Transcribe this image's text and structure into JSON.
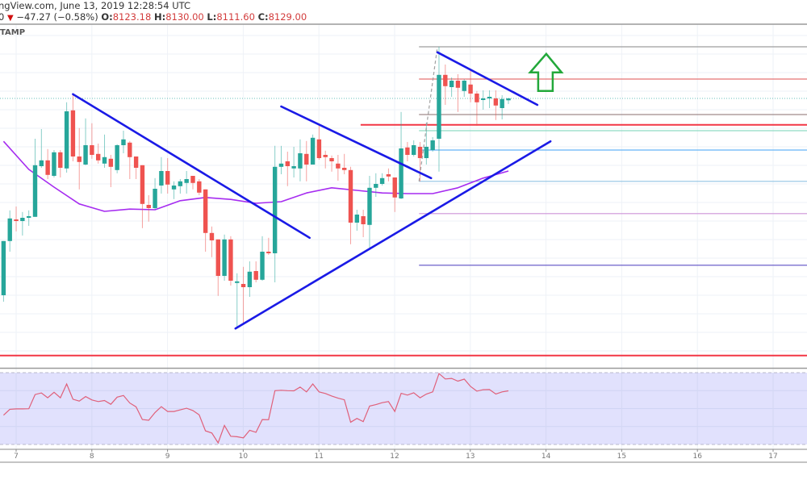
{
  "header": {
    "source_line": "ngView.com, June 13, 2019 12:28:54 UTC",
    "last_digit": "0",
    "change_arrow": "▼",
    "change": "−47.27 (−0.58%)",
    "ohlc": [
      {
        "label": "O:",
        "value": "8123.18"
      },
      {
        "label": "H:",
        "value": "8130.00"
      },
      {
        "label": "L:",
        "value": "8111.60"
      },
      {
        "label": "C:",
        "value": "8129.00"
      }
    ]
  },
  "exchange_label": "TAMP",
  "colors": {
    "up": "#26a69a",
    "down": "#ef5350",
    "moving_average": "#a62cf0",
    "trend_line": "#1a1ae6",
    "arrow": "#22a83a",
    "rsi_line": "#e0607a",
    "rsi_fill": "#e1e1fd",
    "current_price_line": "#26a69a"
  },
  "chart_data": {
    "type": "candlestick",
    "start": "2019-06-06 20:00",
    "interval_hours": 2,
    "current_price": 8129,
    "candles_ohlc": [
      [
        7519,
        7687,
        7499,
        7687
      ],
      [
        7687,
        7782,
        7654,
        7757
      ],
      [
        7754,
        7794,
        7717,
        7749
      ],
      [
        7749,
        7777,
        7704,
        7759
      ],
      [
        7759,
        7782,
        7734,
        7764
      ],
      [
        7762,
        8004,
        7762,
        7922
      ],
      [
        7919,
        8034,
        7914,
        7937
      ],
      [
        7937,
        7972,
        7879,
        7892
      ],
      [
        7889,
        7969,
        7884,
        7962
      ],
      [
        7962,
        7969,
        7884,
        7914
      ],
      [
        7912,
        8117,
        7899,
        8089
      ],
      [
        8092,
        8142,
        7934,
        7949
      ],
      [
        7949,
        8037,
        7847,
        7932
      ],
      [
        7924,
        8067,
        7922,
        7984
      ],
      [
        7984,
        8052,
        7942,
        7954
      ],
      [
        7957,
        7989,
        7927,
        7937
      ],
      [
        7927,
        8017,
        7914,
        7947
      ],
      [
        7942,
        7954,
        7854,
        7917
      ],
      [
        7907,
        7987,
        7897,
        7984
      ],
      [
        7984,
        8029,
        7959,
        8002
      ],
      [
        7992,
        7997,
        7879,
        7947
      ],
      [
        7949,
        7949,
        7879,
        7914
      ],
      [
        7922,
        7922,
        7727,
        7802
      ],
      [
        7799,
        7829,
        7747,
        7789
      ],
      [
        7789,
        7882,
        7784,
        7849
      ],
      [
        7859,
        7947,
        7834,
        7904
      ],
      [
        7904,
        7944,
        7834,
        7862
      ],
      [
        7847,
        7872,
        7817,
        7859
      ],
      [
        7857,
        7879,
        7834,
        7872
      ],
      [
        7867,
        7904,
        7834,
        7879
      ],
      [
        7889,
        7889,
        7847,
        7867
      ],
      [
        7872,
        7879,
        7829,
        7837
      ],
      [
        7847,
        7847,
        7654,
        7712
      ],
      [
        7712,
        7732,
        7637,
        7689
      ],
      [
        7692,
        7692,
        7517,
        7579
      ],
      [
        7579,
        7707,
        7564,
        7692
      ],
      [
        7692,
        7702,
        7549,
        7564
      ],
      [
        7557,
        7587,
        7417,
        7562
      ],
      [
        7554,
        7607,
        7434,
        7544
      ],
      [
        7544,
        7624,
        7514,
        7592
      ],
      [
        7594,
        7624,
        7559,
        7567
      ],
      [
        7567,
        7702,
        7564,
        7654
      ],
      [
        7654,
        7697,
        7644,
        7649
      ],
      [
        7649,
        7982,
        7559,
        7917
      ],
      [
        7917,
        7982,
        7894,
        7927
      ],
      [
        7934,
        7964,
        7857,
        7919
      ],
      [
        7912,
        7979,
        7884,
        7919
      ],
      [
        7912,
        8002,
        7872,
        7959
      ],
      [
        7957,
        7997,
        7872,
        7924
      ],
      [
        7924,
        8017,
        7924,
        8007
      ],
      [
        8002,
        8047,
        7939,
        7944
      ],
      [
        7954,
        7967,
        7912,
        7947
      ],
      [
        7944,
        7952,
        7902,
        7934
      ],
      [
        7927,
        7954,
        7874,
        7912
      ],
      [
        7914,
        7957,
        7894,
        7907
      ],
      [
        7907,
        7917,
        7677,
        7744
      ],
      [
        7744,
        7784,
        7719,
        7769
      ],
      [
        7764,
        7784,
        7699,
        7739
      ],
      [
        7737,
        7889,
        7659,
        7852
      ],
      [
        7852,
        7897,
        7824,
        7864
      ],
      [
        7864,
        7897,
        7859,
        7882
      ],
      [
        7894,
        7912,
        7872,
        7887
      ],
      [
        7884,
        7884,
        7777,
        7822
      ],
      [
        7819,
        8087,
        7817,
        7974
      ],
      [
        7977,
        7994,
        7934,
        7954
      ],
      [
        7954,
        7999,
        7949,
        7984
      ],
      [
        7979,
        7994,
        7872,
        7944
      ],
      [
        7944,
        8054,
        7924,
        7979
      ],
      [
        7969,
        8009,
        7964,
        7999
      ],
      [
        8004,
        8289,
        7902,
        8202
      ],
      [
        8202,
        8234,
        8109,
        8167
      ],
      [
        8164,
        8194,
        8134,
        8184
      ],
      [
        8184,
        8204,
        8087,
        8162
      ],
      [
        8152,
        8189,
        8134,
        8184
      ],
      [
        8172,
        8214,
        8117,
        8144
      ],
      [
        8144,
        8152,
        8044,
        8117
      ],
      [
        8124,
        8154,
        8094,
        8129
      ],
      [
        8129,
        8154,
        8099,
        8134
      ],
      [
        8129,
        8154,
        8062,
        8107
      ],
      [
        8099,
        8139,
        8064,
        8127
      ],
      [
        8123.18,
        8130,
        8111.6,
        8129
      ]
    ],
    "moving_average": [
      {
        "time": "2019-06-06 20:00",
        "value": 7996
      },
      {
        "time": "2019-06-07 04:00",
        "value": 7909
      },
      {
        "time": "2019-06-07 12:00",
        "value": 7854
      },
      {
        "time": "2019-06-07 20:00",
        "value": 7802
      },
      {
        "time": "2019-06-08 04:00",
        "value": 7779
      },
      {
        "time": "2019-06-08 12:00",
        "value": 7786
      },
      {
        "time": "2019-06-08 20:00",
        "value": 7784
      },
      {
        "time": "2019-06-09 04:00",
        "value": 7812
      },
      {
        "time": "2019-06-09 12:00",
        "value": 7822
      },
      {
        "time": "2019-06-09 20:00",
        "value": 7816
      },
      {
        "time": "2019-06-10 04:00",
        "value": 7804
      },
      {
        "time": "2019-06-10 12:00",
        "value": 7809
      },
      {
        "time": "2019-06-10 20:00",
        "value": 7836
      },
      {
        "time": "2019-06-11 04:00",
        "value": 7852
      },
      {
        "time": "2019-06-11 12:00",
        "value": 7844
      },
      {
        "time": "2019-06-11 20:00",
        "value": 7836
      },
      {
        "time": "2019-06-12 04:00",
        "value": 7834
      },
      {
        "time": "2019-06-12 12:00",
        "value": 7834
      },
      {
        "time": "2019-06-12 20:00",
        "value": 7852
      },
      {
        "time": "2019-06-13 04:00",
        "value": 7882
      },
      {
        "time": "2019-06-13 12:00",
        "value": 7904
      }
    ],
    "trend_lines": [
      {
        "from": {
          "time": "2019-06-07 18:00",
          "price": 8142
        },
        "to": {
          "time": "2019-06-10 21:00",
          "price": 7697
        }
      },
      {
        "from": {
          "time": "2019-06-10 12:00",
          "price": 8104
        },
        "to": {
          "time": "2019-06-12 11:30",
          "price": 7882
        }
      },
      {
        "from": {
          "time": "2019-06-09 21:30",
          "price": 7416
        },
        "to": {
          "time": "2019-06-14 01:20",
          "price": 7996
        }
      },
      {
        "from": {
          "time": "2019-06-12 13:30",
          "price": 8272
        },
        "to": {
          "time": "2019-06-13 21:10",
          "price": 8109
        }
      }
    ],
    "dashed_line": {
      "from": {
        "time": "2019-06-12 07:40",
        "price": 7872
      },
      "to": {
        "time": "2019-06-12 13:30",
        "price": 8289
      }
    },
    "horizontal_levels": [
      {
        "price": 8289,
        "color": "#9e9e9e",
        "from": "2019-06-12 07:40",
        "thick": false
      },
      {
        "price": 8189,
        "color": "#e57373",
        "from": "2019-06-12 07:40",
        "thick": false
      },
      {
        "price": 8079,
        "color": "#a08a8a",
        "from": "2019-06-12 07:40",
        "thick": false
      },
      {
        "price": 8047,
        "color": "#f23645",
        "from": "2019-06-11 13:10",
        "thick": true
      },
      {
        "price": 8029,
        "color": "#8fdcc4",
        "from": "2019-06-12 07:40",
        "thick": false
      },
      {
        "price": 7969,
        "color": "#64b5f6",
        "from": "2019-06-12 07:40",
        "thick": false
      },
      {
        "price": 7872,
        "color": "#90c4e4",
        "from": "2019-06-12 07:40",
        "thick": false
      },
      {
        "price": 7772,
        "color": "#ce93d8",
        "from": "2019-06-12 07:40",
        "thick": false
      },
      {
        "price": 7612,
        "color": "#5c4fc4",
        "from": "2019-06-12 07:40",
        "thick": false
      },
      {
        "price": 7332,
        "color": "#f23645",
        "from": null,
        "thick": true
      }
    ],
    "arrow": {
      "direction": "up",
      "time": "2019-06-14 00:00",
      "tip_price": 8267,
      "base_price": 8152
    },
    "rsi": {
      "upper_band": 70,
      "lower_band": 30,
      "values": [
        46.3,
        49.6,
        49.8,
        49.8,
        49.9,
        57.8,
        58.7,
        56.0,
        59.1,
        56.0,
        63.7,
        55.2,
        54.2,
        56.7,
        54.8,
        53.9,
        54.5,
        52.4,
        56.4,
        57.3,
        53.1,
        51.0,
        43.9,
        43.5,
        47.8,
        51.1,
        48.4,
        48.4,
        49.3,
        50.2,
        48.9,
        46.5,
        37.6,
        36.4,
        30.9,
        40.6,
        34.6,
        34.3,
        33.7,
        37.9,
        36.8,
        43.9,
        43.8,
        60.0,
        60.2,
        60.0,
        59.9,
        62.0,
        59.3,
        63.7,
        59.3,
        58.4,
        57.0,
        55.8,
        54.9,
        42.4,
        44.5,
        42.7,
        51.4,
        52.2,
        53.3,
        53.9,
        48.4,
        58.5,
        57.5,
        58.8,
        56.0,
        58.1,
        59.3,
        69.5,
        66.5,
        66.8,
        65.3,
        66.4,
        62.3,
        59.7,
        60.5,
        60.6,
        58.1,
        59.3,
        59.9
      ]
    },
    "x_ticks": [
      "7",
      "8",
      "9",
      "10",
      "11",
      "12",
      "13",
      "14",
      "15",
      "16",
      "17"
    ]
  }
}
